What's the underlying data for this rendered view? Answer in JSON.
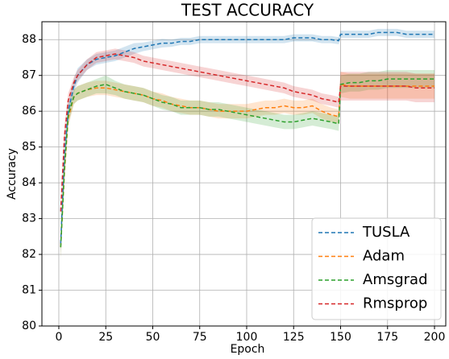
{
  "chart_data": {
    "type": "line",
    "title": "TEST ACCURACY",
    "xlabel": "Epoch",
    "ylabel": "Accuracy",
    "x": [
      1,
      3,
      5,
      8,
      10,
      15,
      20,
      25,
      30,
      35,
      40,
      45,
      50,
      55,
      60,
      65,
      70,
      75,
      80,
      85,
      90,
      95,
      100,
      105,
      110,
      115,
      120,
      125,
      130,
      135,
      140,
      145,
      149,
      150,
      155,
      160,
      165,
      170,
      175,
      180,
      185,
      190,
      195,
      200
    ],
    "series": [
      {
        "name": "TUSLA",
        "color": "#1f77b4",
        "values": [
          82.3,
          84.8,
          86.0,
          86.7,
          87.0,
          87.3,
          87.45,
          87.5,
          87.55,
          87.65,
          87.75,
          87.8,
          87.85,
          87.9,
          87.9,
          87.95,
          87.95,
          88.0,
          88.0,
          88.0,
          88.0,
          88.0,
          88.0,
          88.0,
          88.0,
          88.0,
          88.0,
          88.05,
          88.05,
          88.05,
          88.0,
          88.0,
          87.97,
          88.15,
          88.15,
          88.15,
          88.15,
          88.2,
          88.2,
          88.2,
          88.15,
          88.15,
          88.15,
          88.15
        ],
        "errors": [
          0.3,
          0.3,
          0.25,
          0.2,
          0.2,
          0.15,
          0.15,
          0.15,
          0.15,
          0.15,
          0.15,
          0.12,
          0.12,
          0.12,
          0.1,
          0.1,
          0.1,
          0.1,
          0.1,
          0.1,
          0.1,
          0.1,
          0.1,
          0.1,
          0.1,
          0.1,
          0.1,
          0.1,
          0.1,
          0.1,
          0.1,
          0.1,
          0.1,
          0.1,
          0.1,
          0.1,
          0.1,
          0.1,
          0.1,
          0.1,
          0.1,
          0.1,
          0.1,
          0.1
        ]
      },
      {
        "name": "Adam",
        "color": "#ff7f0e",
        "values": [
          82.2,
          84.3,
          85.8,
          86.4,
          86.5,
          86.6,
          86.65,
          86.65,
          86.6,
          86.55,
          86.5,
          86.45,
          86.35,
          86.3,
          86.2,
          86.15,
          86.1,
          86.1,
          86.05,
          86.0,
          86.0,
          86.0,
          86.0,
          86.05,
          86.1,
          86.1,
          86.15,
          86.1,
          86.1,
          86.15,
          86.0,
          85.9,
          85.85,
          86.75,
          86.7,
          86.7,
          86.7,
          86.7,
          86.7,
          86.7,
          86.7,
          86.7,
          86.7,
          86.7
        ],
        "errors": [
          0.3,
          0.3,
          0.25,
          0.2,
          0.2,
          0.2,
          0.2,
          0.2,
          0.2,
          0.2,
          0.2,
          0.2,
          0.2,
          0.2,
          0.2,
          0.2,
          0.2,
          0.2,
          0.2,
          0.2,
          0.2,
          0.2,
          0.2,
          0.2,
          0.2,
          0.2,
          0.2,
          0.2,
          0.2,
          0.2,
          0.2,
          0.2,
          0.2,
          0.35,
          0.35,
          0.35,
          0.35,
          0.35,
          0.35,
          0.35,
          0.35,
          0.35,
          0.35,
          0.35
        ]
      },
      {
        "name": "Amsgrad",
        "color": "#2ca02c",
        "values": [
          82.2,
          84.4,
          85.9,
          86.4,
          86.5,
          86.6,
          86.7,
          86.75,
          86.65,
          86.55,
          86.5,
          86.45,
          86.35,
          86.25,
          86.2,
          86.1,
          86.1,
          86.1,
          86.05,
          86.05,
          86.0,
          85.95,
          85.9,
          85.85,
          85.8,
          85.75,
          85.7,
          85.7,
          85.75,
          85.8,
          85.75,
          85.7,
          85.65,
          86.75,
          86.8,
          86.8,
          86.85,
          86.85,
          86.9,
          86.9,
          86.9,
          86.9,
          86.9,
          86.9
        ],
        "errors": [
          0.3,
          0.3,
          0.25,
          0.2,
          0.2,
          0.2,
          0.2,
          0.25,
          0.2,
          0.2,
          0.2,
          0.2,
          0.2,
          0.2,
          0.2,
          0.2,
          0.2,
          0.2,
          0.2,
          0.2,
          0.2,
          0.2,
          0.2,
          0.2,
          0.2,
          0.2,
          0.2,
          0.2,
          0.2,
          0.2,
          0.2,
          0.2,
          0.2,
          0.25,
          0.25,
          0.25,
          0.25,
          0.25,
          0.25,
          0.25,
          0.25,
          0.25,
          0.25,
          0.25
        ]
      },
      {
        "name": "Rmsprop",
        "color": "#d62728",
        "values": [
          83.2,
          85.3,
          86.3,
          86.8,
          87.0,
          87.3,
          87.5,
          87.55,
          87.6,
          87.55,
          87.5,
          87.4,
          87.35,
          87.3,
          87.25,
          87.2,
          87.15,
          87.1,
          87.05,
          87.0,
          86.95,
          86.9,
          86.85,
          86.8,
          86.75,
          86.7,
          86.65,
          86.55,
          86.5,
          86.45,
          86.35,
          86.3,
          86.25,
          86.7,
          86.7,
          86.7,
          86.7,
          86.7,
          86.7,
          86.7,
          86.7,
          86.65,
          86.65,
          86.65
        ],
        "errors": [
          0.3,
          0.3,
          0.2,
          0.15,
          0.15,
          0.15,
          0.15,
          0.15,
          0.15,
          0.15,
          0.15,
          0.15,
          0.15,
          0.15,
          0.15,
          0.15,
          0.15,
          0.15,
          0.15,
          0.15,
          0.15,
          0.15,
          0.15,
          0.15,
          0.15,
          0.15,
          0.15,
          0.15,
          0.15,
          0.15,
          0.15,
          0.15,
          0.15,
          0.4,
          0.4,
          0.4,
          0.4,
          0.4,
          0.4,
          0.4,
          0.4,
          0.4,
          0.4,
          0.4
        ]
      }
    ],
    "xlim": [
      -9,
      206
    ],
    "ylim": [
      80,
      88.5
    ],
    "xticks": [
      0,
      25,
      50,
      75,
      100,
      125,
      150,
      175,
      200
    ],
    "yticks": [
      80,
      81,
      82,
      83,
      84,
      85,
      86,
      87,
      88
    ],
    "grid": true,
    "legend": "lower right"
  }
}
